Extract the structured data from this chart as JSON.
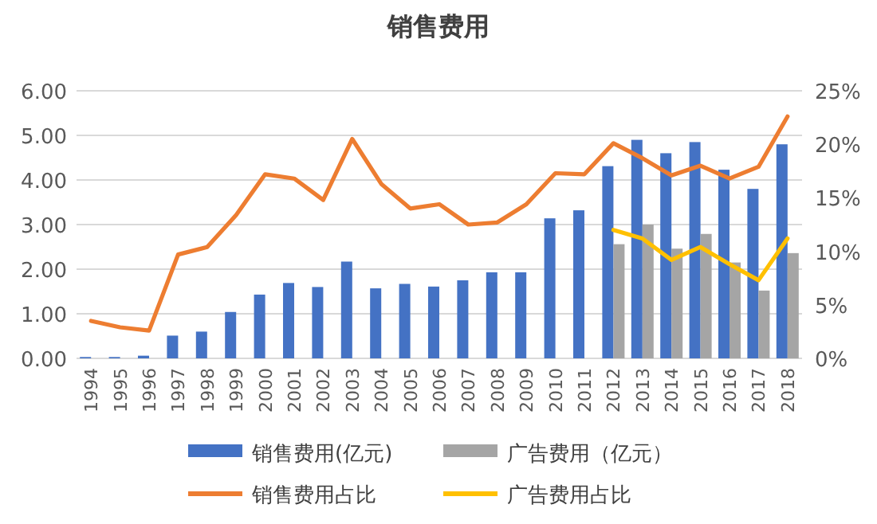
{
  "chart_data": {
    "type": "bar",
    "title": "销售费用",
    "categories": [
      "1994",
      "1995",
      "1996",
      "1997",
      "1998",
      "1999",
      "2000",
      "2001",
      "2002",
      "2003",
      "2004",
      "2005",
      "2006",
      "2007",
      "2008",
      "2009",
      "2010",
      "2011",
      "2012",
      "2013",
      "2014",
      "2015",
      "2016",
      "2017",
      "2018"
    ],
    "series": [
      {
        "name": "销售费用(亿元)",
        "color": "#4472c4",
        "values": [
          0.03,
          0.03,
          0.06,
          0.51,
          0.6,
          1.04,
          1.43,
          1.69,
          1.6,
          2.17,
          1.57,
          1.67,
          1.61,
          1.75,
          1.93,
          1.93,
          3.14,
          3.32,
          4.31,
          4.9,
          4.6,
          4.85,
          4.23,
          3.8,
          4.8
        ]
      },
      {
        "name": "广告费用（亿元）",
        "color": "#a5a5a5",
        "values": [
          null,
          null,
          null,
          null,
          null,
          null,
          null,
          null,
          null,
          null,
          null,
          null,
          null,
          null,
          null,
          null,
          null,
          null,
          2.56,
          3.0,
          2.46,
          2.79,
          2.15,
          1.52,
          2.36
        ]
      },
      {
        "name": "销售费用占比",
        "type": "line",
        "axis": "y2",
        "color": "#ed7d31",
        "values": [
          3.5,
          2.9,
          2.6,
          9.7,
          10.4,
          13.4,
          17.2,
          16.8,
          14.8,
          20.5,
          16.3,
          14.0,
          14.4,
          12.5,
          12.7,
          14.4,
          17.3,
          17.2,
          20.1,
          18.7,
          17.1,
          18.0,
          16.8,
          17.9,
          22.6
        ]
      },
      {
        "name": "广告费用占比",
        "type": "line",
        "axis": "y2",
        "color": "#ffc000",
        "values": [
          null,
          null,
          null,
          null,
          null,
          null,
          null,
          null,
          null,
          null,
          null,
          null,
          null,
          null,
          null,
          null,
          null,
          null,
          12.0,
          11.2,
          9.2,
          10.4,
          8.8,
          7.3,
          11.2
        ]
      }
    ],
    "ylim": [
      0,
      6
    ],
    "yticks": [
      {
        "value": 0,
        "label": "0.00"
      },
      {
        "value": 1,
        "label": "1.00"
      },
      {
        "value": 2,
        "label": "2.00"
      },
      {
        "value": 3,
        "label": "3.00"
      },
      {
        "value": 4,
        "label": "4.00"
      },
      {
        "value": 5,
        "label": "5.00"
      },
      {
        "value": 6,
        "label": "6.00"
      }
    ],
    "y2lim": [
      0,
      25
    ],
    "y2ticks": [
      {
        "value": 0,
        "label": "0%"
      },
      {
        "value": 5,
        "label": "5%"
      },
      {
        "value": 10,
        "label": "10%"
      },
      {
        "value": 15,
        "label": "15%"
      },
      {
        "value": 20,
        "label": "20%"
      },
      {
        "value": 25,
        "label": "25%"
      }
    ],
    "grid": "y",
    "legend": "bottom"
  }
}
